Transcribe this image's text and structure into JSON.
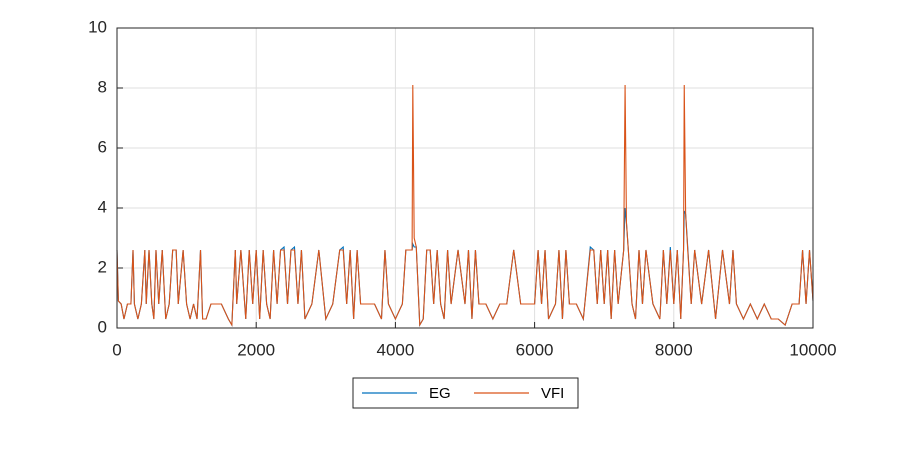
{
  "chart_data": {
    "type": "line",
    "x": [
      0,
      20,
      60,
      100,
      150,
      200,
      230,
      250,
      300,
      350,
      400,
      420,
      460,
      500,
      530,
      560,
      600,
      650,
      700,
      750,
      800,
      850,
      880,
      950,
      1000,
      1050,
      1100,
      1150,
      1200,
      1230,
      1280,
      1350,
      1400,
      1500,
      1600,
      1650,
      1700,
      1720,
      1780,
      1850,
      1900,
      1950,
      2000,
      2050,
      2100,
      2150,
      2200,
      2250,
      2300,
      2350,
      2400,
      2450,
      2500,
      2550,
      2600,
      2650,
      2700,
      2800,
      2900,
      3000,
      3100,
      3200,
      3250,
      3300,
      3350,
      3400,
      3450,
      3500,
      3600,
      3700,
      3800,
      3850,
      3900,
      4000,
      4100,
      4150,
      4200,
      4240,
      4250,
      4270,
      4300,
      4350,
      4400,
      4450,
      4500,
      4550,
      4600,
      4650,
      4700,
      4750,
      4800,
      4900,
      5000,
      5050,
      5100,
      5150,
      5200,
      5300,
      5400,
      5500,
      5600,
      5700,
      5800,
      5900,
      6000,
      6050,
      6100,
      6150,
      6200,
      6300,
      6350,
      6400,
      6450,
      6500,
      6600,
      6700,
      6800,
      6850,
      6900,
      6950,
      7000,
      7050,
      7100,
      7150,
      7200,
      7280,
      7300,
      7320,
      7400,
      7450,
      7500,
      7550,
      7600,
      7700,
      7800,
      7850,
      7900,
      7950,
      8000,
      8050,
      8100,
      8140,
      8150,
      8170,
      8200,
      8250,
      8300,
      8400,
      8500,
      8600,
      8700,
      8800,
      8850,
      8900,
      9000,
      9100,
      9200,
      9300,
      9400,
      9500,
      9600,
      9700,
      9800,
      9850,
      9900,
      9950,
      10000
    ],
    "series": [
      {
        "name": "EG",
        "color": "#0072BD",
        "values": [
          2.6,
          0.9,
          0.8,
          0.3,
          0.8,
          0.8,
          2.6,
          0.8,
          0.3,
          0.8,
          2.6,
          0.8,
          2.6,
          0.8,
          0.3,
          2.6,
          0.8,
          2.6,
          0.3,
          0.8,
          2.6,
          2.6,
          0.8,
          2.6,
          0.8,
          0.3,
          0.8,
          0.3,
          2.6,
          0.3,
          0.3,
          0.8,
          0.8,
          0.8,
          0.3,
          0.1,
          2.6,
          0.8,
          2.6,
          0.3,
          2.6,
          0.8,
          2.6,
          0.3,
          2.6,
          0.8,
          0.3,
          2.6,
          0.8,
          2.6,
          2.7,
          0.8,
          2.6,
          2.7,
          0.8,
          2.6,
          0.3,
          0.8,
          2.6,
          0.3,
          0.8,
          2.6,
          2.7,
          0.8,
          2.6,
          0.3,
          2.6,
          0.8,
          0.8,
          0.8,
          0.3,
          2.6,
          0.8,
          0.3,
          0.8,
          2.6,
          2.6,
          2.6,
          2.8,
          2.7,
          2.7,
          0.1,
          0.3,
          2.6,
          2.6,
          0.8,
          2.6,
          0.8,
          0.3,
          2.6,
          0.8,
          2.6,
          0.8,
          2.6,
          0.3,
          2.6,
          0.8,
          0.8,
          0.3,
          0.8,
          0.8,
          2.6,
          0.8,
          0.8,
          0.8,
          2.6,
          0.8,
          2.6,
          0.3,
          0.8,
          2.6,
          0.3,
          2.6,
          0.8,
          0.8,
          0.3,
          2.7,
          2.6,
          0.8,
          2.6,
          0.8,
          2.6,
          0.3,
          2.6,
          0.8,
          2.6,
          4.0,
          3.5,
          0.8,
          0.3,
          2.6,
          0.8,
          2.6,
          0.8,
          0.3,
          2.6,
          0.8,
          2.7,
          0.8,
          2.6,
          0.3,
          2.6,
          3.9,
          3.8,
          2.7,
          0.8,
          2.6,
          0.8,
          2.6,
          0.3,
          2.6,
          0.8,
          2.6,
          0.8,
          0.3,
          0.8,
          0.3,
          0.8,
          0.3,
          0.3,
          0.1,
          0.8,
          0.8,
          2.6,
          0.8,
          2.6,
          0.9
        ]
      },
      {
        "name": "VFI",
        "color": "#D95319",
        "values": [
          2.6,
          0.9,
          0.8,
          0.3,
          0.8,
          0.8,
          2.6,
          0.8,
          0.3,
          0.8,
          2.6,
          0.8,
          2.6,
          0.8,
          0.3,
          2.6,
          0.8,
          2.6,
          0.3,
          0.8,
          2.6,
          2.6,
          0.8,
          2.6,
          0.8,
          0.3,
          0.8,
          0.3,
          2.6,
          0.3,
          0.3,
          0.8,
          0.8,
          0.8,
          0.3,
          0.1,
          2.6,
          0.8,
          2.6,
          0.3,
          2.6,
          0.8,
          2.6,
          0.3,
          2.6,
          0.8,
          0.3,
          2.6,
          0.8,
          2.6,
          2.6,
          0.8,
          2.6,
          2.6,
          0.8,
          2.6,
          0.3,
          0.8,
          2.6,
          0.3,
          0.8,
          2.6,
          2.6,
          0.8,
          2.6,
          0.3,
          2.6,
          0.8,
          0.8,
          0.8,
          0.3,
          2.6,
          0.8,
          0.3,
          0.8,
          2.6,
          2.6,
          2.6,
          8.1,
          3.0,
          2.7,
          0.1,
          0.3,
          2.6,
          2.6,
          0.8,
          2.6,
          0.8,
          0.3,
          2.6,
          0.8,
          2.6,
          0.8,
          2.6,
          0.3,
          2.6,
          0.8,
          0.8,
          0.3,
          0.8,
          0.8,
          2.6,
          0.8,
          0.8,
          0.8,
          2.6,
          0.8,
          2.6,
          0.3,
          0.8,
          2.6,
          0.3,
          2.6,
          0.8,
          0.8,
          0.3,
          2.6,
          2.6,
          0.8,
          2.6,
          0.8,
          2.6,
          0.3,
          2.6,
          0.8,
          2.6,
          8.1,
          3.5,
          0.8,
          0.3,
          2.6,
          0.8,
          2.6,
          0.8,
          0.3,
          2.6,
          0.8,
          2.6,
          0.8,
          2.6,
          0.3,
          2.6,
          8.1,
          3.8,
          2.6,
          0.8,
          2.6,
          0.8,
          2.6,
          0.3,
          2.6,
          0.8,
          2.6,
          0.8,
          0.3,
          0.8,
          0.3,
          0.8,
          0.3,
          0.3,
          0.1,
          0.8,
          0.8,
          2.6,
          0.8,
          2.6,
          0.9
        ]
      }
    ],
    "xlim": [
      0,
      10000
    ],
    "xticks": [
      0,
      2000,
      4000,
      6000,
      8000,
      10000
    ],
    "ylim": [
      0,
      10
    ],
    "yticks": [
      0,
      2,
      4,
      6,
      8,
      10
    ],
    "grid": true,
    "legend": "bottom"
  }
}
